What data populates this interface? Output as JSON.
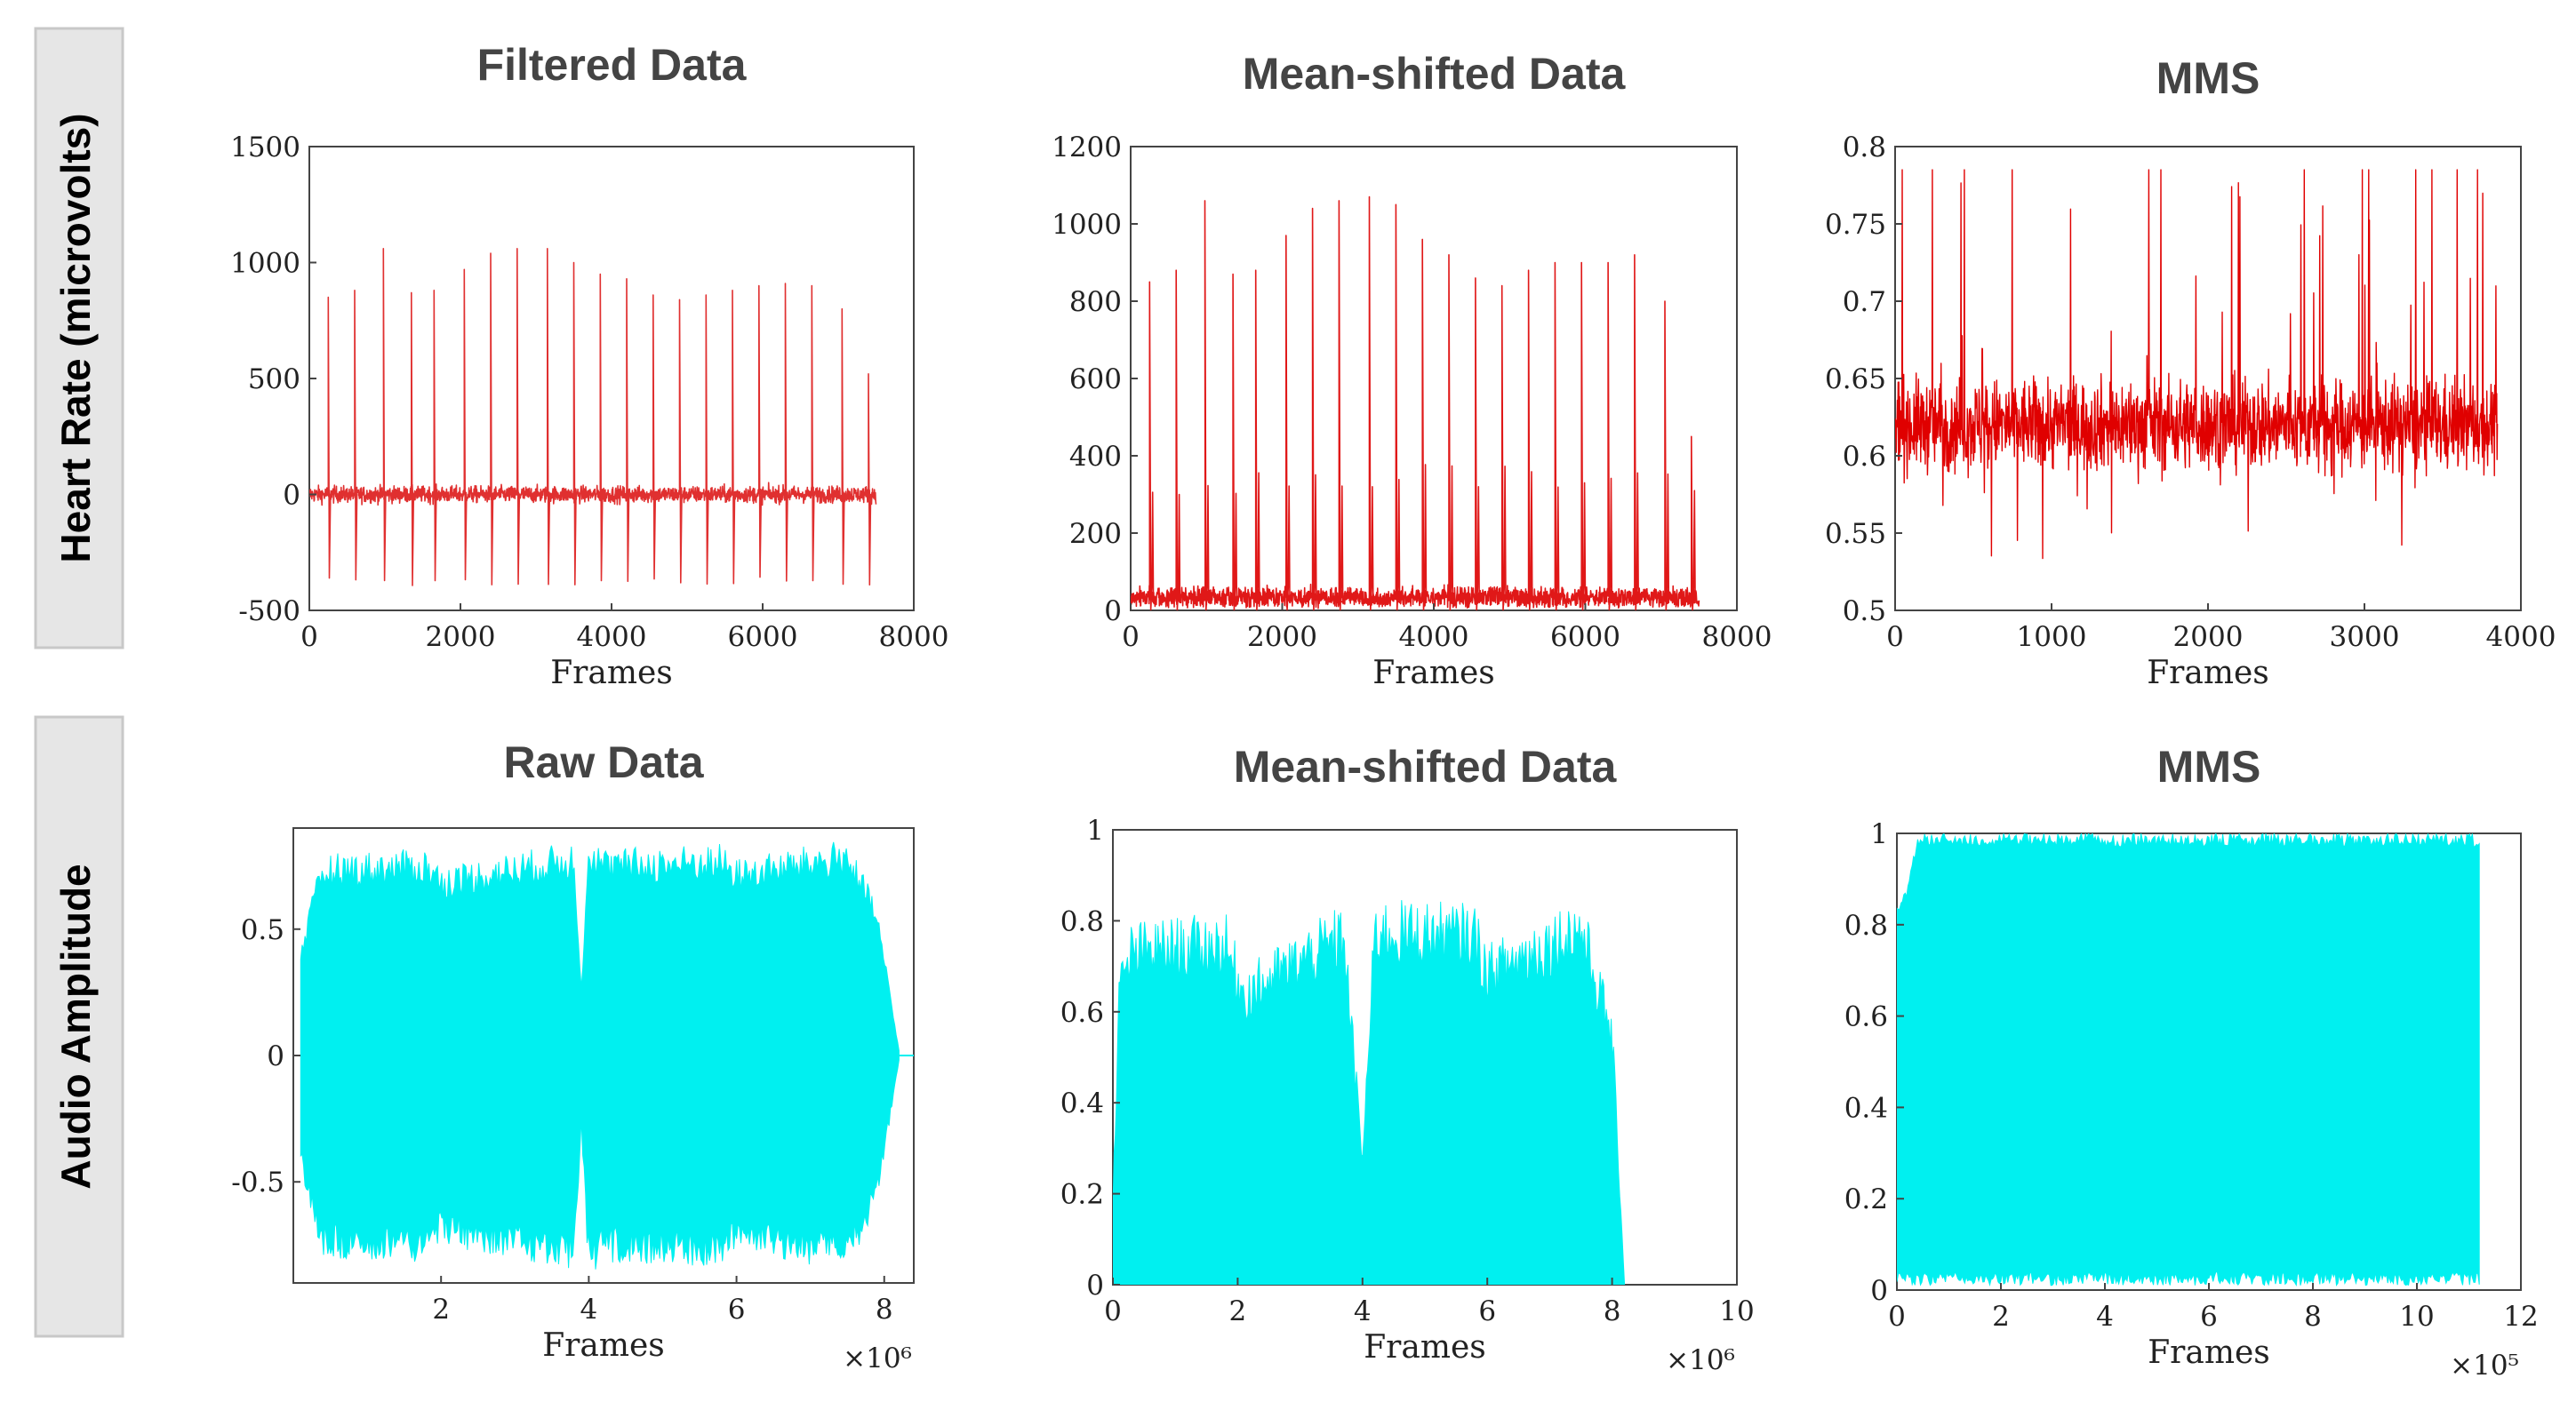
{
  "row_labels": [
    "Heart Rate (microvolts)",
    "Audio Amplitude"
  ],
  "chart_data": [
    {
      "type": "line",
      "title": "Filtered Data",
      "xlabel": "Frames",
      "ylabel": "",
      "xlim": [
        0,
        8000
      ],
      "ylim": [
        -500,
        1500
      ],
      "xticks": [
        "0",
        "2000",
        "4000",
        "6000",
        "8000"
      ],
      "yticks": [
        "-500",
        "0",
        "500",
        "1000",
        "1500"
      ],
      "x_exponent": "",
      "color": "#e03030",
      "series": [
        {
          "signal": "ecg",
          "x_end": 7500,
          "baseline": 0,
          "peak_x": [
            250,
            600,
            980,
            1350,
            1650,
            2050,
            2400,
            2750,
            3150,
            3500,
            3850,
            4200,
            4550,
            4900,
            5250,
            5600,
            5950,
            6300,
            6650,
            7050,
            7400
          ],
          "peak_y": [
            850,
            880,
            1060,
            870,
            880,
            970,
            1040,
            1060,
            1060,
            1000,
            950,
            930,
            860,
            840,
            860,
            880,
            900,
            910,
            900,
            800,
            520
          ],
          "trough_y": -380,
          "noise": 60
        }
      ]
    },
    {
      "type": "line",
      "title": "Mean-shifted Data",
      "xlabel": "Frames",
      "ylabel": "",
      "xlim": [
        0,
        8000
      ],
      "ylim": [
        0,
        1200
      ],
      "xticks": [
        "0",
        "2000",
        "4000",
        "6000",
        "8000"
      ],
      "yticks": [
        "0",
        "200",
        "400",
        "600",
        "800",
        "1000",
        "1200"
      ],
      "x_exponent": "",
      "color": "#e01818",
      "series": [
        {
          "signal": "ecg_shifted",
          "x_end": 7500,
          "baseline": 60,
          "peak_x": [
            250,
            600,
            980,
            1350,
            1650,
            2050,
            2400,
            2750,
            3150,
            3500,
            3850,
            4200,
            4550,
            4900,
            5250,
            5600,
            5950,
            6300,
            6650,
            7050,
            7400
          ],
          "peak_y": [
            850,
            880,
            1060,
            870,
            880,
            970,
            1040,
            1060,
            1070,
            1050,
            960,
            920,
            860,
            840,
            880,
            900,
            900,
            900,
            920,
            800,
            450
          ],
          "trough_y": 0,
          "noise": 40
        }
      ]
    },
    {
      "type": "line",
      "title": "MMS",
      "xlabel": "Frames",
      "ylabel": "",
      "xlim": [
        0,
        4000
      ],
      "ylim": [
        0.5,
        0.8
      ],
      "xticks": [
        "0",
        "1000",
        "2000",
        "3000",
        "4000"
      ],
      "yticks": [
        "0.5",
        "0.55",
        "0.6",
        "0.65",
        "0.7",
        "0.75",
        "0.8"
      ],
      "x_exponent": "",
      "color": "#e00000",
      "series": [
        {
          "signal": "dense_noise",
          "x_end": 3850,
          "center": 0.62,
          "spread": 0.05,
          "max": 0.785,
          "min": 0.5
        }
      ]
    },
    {
      "type": "area",
      "title": "Raw Data",
      "xlabel": "Frames",
      "ylabel": "",
      "xlim": [
        0,
        8400000
      ],
      "ylim": [
        -0.9,
        0.9
      ],
      "xticks": [
        "2",
        "4",
        "6",
        "8"
      ],
      "xtick_values": [
        2000000,
        4000000,
        6000000,
        8000000
      ],
      "yticks": [
        "-0.5",
        "0",
        "0.5"
      ],
      "ytick_values": [
        -0.5,
        0,
        0.5
      ],
      "x_exponent": "×10⁶",
      "color": "#00f0f0",
      "series": [
        {
          "signal": "audio_symmetric",
          "x_start": 100000,
          "x_end": 8200000,
          "envelope_x": [
            100000,
            400000,
            1800000,
            2000000,
            3800000,
            3900000,
            4000000,
            4200000,
            5800000,
            6000000,
            7500000,
            7900000,
            8200000
          ],
          "envelope_y": [
            0.45,
            0.8,
            0.82,
            0.75,
            0.85,
            0.3,
            0.88,
            0.82,
            0.84,
            0.78,
            0.86,
            0.6,
            0.02
          ]
        }
      ]
    },
    {
      "type": "area",
      "title": "Mean-shifted Data",
      "xlabel": "Frames",
      "ylabel": "",
      "xlim": [
        0,
        10000000
      ],
      "ylim": [
        0,
        1
      ],
      "xticks": [
        "0",
        "2",
        "4",
        "6",
        "8",
        "10"
      ],
      "xtick_values": [
        0,
        2000000,
        4000000,
        6000000,
        8000000,
        10000000
      ],
      "yticks": [
        "0",
        "0.2",
        "0.4",
        "0.6",
        "0.8",
        "1"
      ],
      "ytick_values": [
        0,
        0.2,
        0.4,
        0.6,
        0.8,
        1
      ],
      "x_exponent": "×10⁶",
      "color": "#00f0f0",
      "series": [
        {
          "signal": "audio_positive",
          "x_start": 0,
          "x_end": 8200000,
          "envelope_x": [
            0,
            100000,
            300000,
            1800000,
            2100000,
            3700000,
            4000000,
            4200000,
            5800000,
            6000000,
            7500000,
            8000000,
            8200000
          ],
          "envelope_y": [
            0.2,
            0.7,
            0.8,
            0.82,
            0.7,
            0.84,
            0.3,
            0.85,
            0.84,
            0.75,
            0.86,
            0.6,
            0.0
          ]
        }
      ]
    },
    {
      "type": "area",
      "title": "MMS",
      "xlabel": "Frames",
      "ylabel": "",
      "xlim": [
        0,
        1200000
      ],
      "ylim": [
        0,
        1
      ],
      "xticks": [
        "0",
        "2",
        "4",
        "6",
        "8",
        "10",
        "12"
      ],
      "xtick_values": [
        0,
        200000,
        400000,
        600000,
        800000,
        1000000,
        1200000
      ],
      "yticks": [
        "0",
        "0.2",
        "0.4",
        "0.6",
        "0.8",
        "1"
      ],
      "ytick_values": [
        0,
        0.2,
        0.4,
        0.6,
        0.8,
        1
      ],
      "x_exponent": "×10⁵",
      "color": "#00f0f0",
      "series": [
        {
          "signal": "audio_full",
          "x_start": 0,
          "x_end": 1120000,
          "envelope_x": [
            0,
            20000,
            40000,
            1100000,
            1120000
          ],
          "envelope_y": [
            0.85,
            0.88,
            1.0,
            1.0,
            1.0
          ]
        }
      ]
    }
  ]
}
